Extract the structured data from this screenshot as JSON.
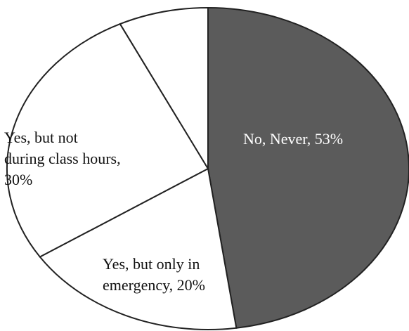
{
  "chart_data": {
    "type": "pie",
    "values": [
      53,
      20,
      30,
      8
    ],
    "value_labels": [
      [
        "No, Never, 53%"
      ],
      [
        "Yes, but only in",
        "emergency, 20%"
      ],
      [
        "Yes, but not",
        "during class hours,",
        "30%"
      ],
      null
    ],
    "colors": [
      "#5b5b5b",
      "#ffffff",
      "#ffffff",
      "#ffffff"
    ],
    "label_colors": [
      "#ffffff",
      "#111111",
      "#111111",
      "#111111"
    ]
  }
}
